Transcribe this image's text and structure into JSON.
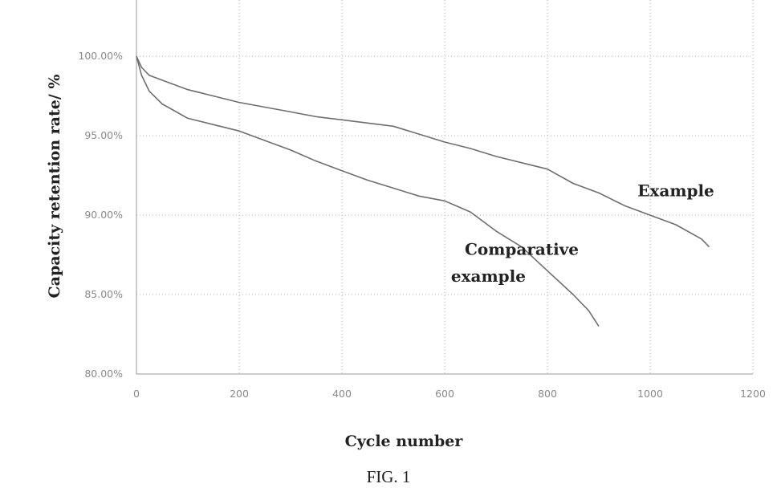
{
  "chart_data": {
    "type": "line",
    "xlabel": "Cycle number",
    "ylabel": "Capacity retention rate/ %",
    "xlim": [
      0,
      1200
    ],
    "ylim": [
      80,
      104
    ],
    "x_ticks": [
      0,
      200,
      400,
      600,
      800,
      1000,
      1200
    ],
    "x_tick_labels": [
      "0",
      "200",
      "400",
      "600",
      "800",
      "1000",
      "1200"
    ],
    "y_ticks": [
      80,
      85,
      90,
      95,
      100
    ],
    "y_tick_labels": [
      "80.00%",
      "85.00%",
      "90.00%",
      "95.00%",
      "100.00%"
    ],
    "grid": true,
    "annotations": [
      {
        "text": "Example",
        "x": 1050,
        "y": 91.2
      },
      {
        "text": "Comparative",
        "x": 750,
        "y": 87.5
      },
      {
        "text": "example",
        "x": 685,
        "y": 85.8
      }
    ],
    "series": [
      {
        "x": [
          0,
          10,
          25,
          50,
          100,
          150,
          200,
          250,
          300,
          350,
          400,
          450,
          500,
          550,
          600,
          650,
          700,
          750,
          800,
          850,
          900,
          950,
          1000,
          1050,
          1100,
          1115
        ],
        "values": [
          100.0,
          99.3,
          98.8,
          98.5,
          97.9,
          97.5,
          97.1,
          96.8,
          96.5,
          96.2,
          96.0,
          95.8,
          95.6,
          95.1,
          94.6,
          94.2,
          93.7,
          93.3,
          92.9,
          92.0,
          91.4,
          90.6,
          90.0,
          89.4,
          88.5,
          88.0
        ]
      },
      {
        "x": [
          0,
          10,
          25,
          50,
          100,
          150,
          200,
          250,
          300,
          350,
          400,
          450,
          500,
          550,
          600,
          650,
          700,
          750,
          800,
          850,
          880,
          900
        ],
        "values": [
          100.0,
          98.8,
          97.8,
          97.0,
          96.1,
          95.7,
          95.3,
          94.7,
          94.1,
          93.4,
          92.8,
          92.2,
          91.7,
          91.2,
          90.9,
          90.2,
          89.0,
          88.0,
          86.5,
          85.0,
          84.0,
          83.0
        ]
      }
    ]
  },
  "figure": {
    "caption": "FIG. 1"
  }
}
